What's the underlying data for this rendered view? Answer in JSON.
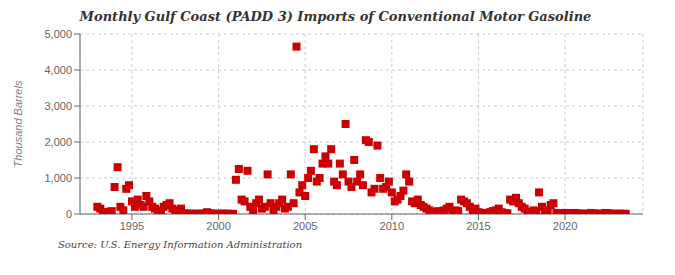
{
  "chart_data": {
    "type": "scatter",
    "title": "Monthly Gulf Coast (PADD 3) Imports of Conventional Motor Gasoline",
    "ylabel": "Thousand Barrels",
    "annotations": [
      "Source: U.S. Energy Information Administration"
    ],
    "color": "#CC0000",
    "marker": "square",
    "grid": true,
    "xlim": [
      1992.0,
      2024.5
    ],
    "xticks": [
      1995,
      2000,
      2005,
      2010,
      2015,
      2020
    ],
    "ylim": [
      0,
      5000
    ],
    "yticks": [
      0,
      {
        "value": 1000,
        "label": "1,000"
      },
      {
        "value": 2000,
        "label": "2,000"
      },
      {
        "value": 3000,
        "label": "3,000"
      },
      {
        "value": 4000,
        "label": "4,000"
      },
      {
        "value": 5000,
        "label": "5,000"
      }
    ],
    "x": [
      1993.0,
      1993.17,
      1993.33,
      1993.5,
      1993.67,
      1993.83,
      1994.0,
      1994.17,
      1994.33,
      1994.5,
      1994.67,
      1994.83,
      1995.0,
      1995.17,
      1995.33,
      1995.5,
      1995.67,
      1995.83,
      1996.0,
      1996.17,
      1996.33,
      1996.5,
      1996.67,
      1996.83,
      1997.0,
      1997.17,
      1997.33,
      1997.5,
      1997.67,
      1997.83,
      1998.0,
      1998.17,
      1998.33,
      1998.5,
      1998.67,
      1998.83,
      1999.0,
      1999.17,
      1999.33,
      1999.5,
      1999.67,
      1999.83,
      2000.0,
      2000.17,
      2000.33,
      2000.5,
      2000.67,
      2000.83,
      2001.0,
      2001.17,
      2001.33,
      2001.5,
      2001.67,
      2001.83,
      2002.0,
      2002.17,
      2002.33,
      2002.5,
      2002.67,
      2002.83,
      2003.0,
      2003.17,
      2003.33,
      2003.5,
      2003.67,
      2003.83,
      2004.0,
      2004.17,
      2004.33,
      2004.5,
      2004.67,
      2004.83,
      2005.0,
      2005.17,
      2005.33,
      2005.5,
      2005.67,
      2005.83,
      2006.0,
      2006.17,
      2006.33,
      2006.5,
      2006.67,
      2006.83,
      2007.0,
      2007.17,
      2007.33,
      2007.5,
      2007.67,
      2007.83,
      2008.0,
      2008.17,
      2008.33,
      2008.5,
      2008.67,
      2008.83,
      2009.0,
      2009.17,
      2009.33,
      2009.5,
      2009.67,
      2009.83,
      2010.0,
      2010.17,
      2010.33,
      2010.5,
      2010.67,
      2010.83,
      2011.0,
      2011.17,
      2011.33,
      2011.5,
      2011.67,
      2011.83,
      2012.0,
      2012.17,
      2012.33,
      2012.5,
      2012.67,
      2012.83,
      2013.0,
      2013.17,
      2013.33,
      2013.5,
      2013.67,
      2013.83,
      2014.0,
      2014.17,
      2014.33,
      2014.5,
      2014.67,
      2014.83,
      2015.0,
      2015.17,
      2015.33,
      2015.5,
      2015.67,
      2015.83,
      2016.0,
      2016.17,
      2016.33,
      2016.5,
      2016.67,
      2016.83,
      2017.0,
      2017.17,
      2017.33,
      2017.5,
      2017.67,
      2017.83,
      2018.0,
      2018.17,
      2018.33,
      2018.5,
      2018.67,
      2018.83,
      2019.0,
      2019.17,
      2019.33,
      2019.5,
      2019.67,
      2019.83,
      2020.0,
      2020.17,
      2020.33,
      2020.5,
      2020.67,
      2020.83,
      2021.0,
      2021.17,
      2021.33,
      2021.5,
      2021.67,
      2021.83,
      2022.0,
      2022.17,
      2022.33,
      2022.5,
      2022.67,
      2022.83,
      2023.0,
      2023.17,
      2023.33,
      2023.5
    ],
    "values": [
      200,
      150,
      50,
      30,
      60,
      80,
      750,
      1300,
      200,
      100,
      700,
      800,
      350,
      200,
      400,
      250,
      200,
      500,
      350,
      200,
      150,
      80,
      100,
      200,
      250,
      300,
      150,
      50,
      100,
      150,
      20,
      10,
      5,
      10,
      5,
      5,
      10,
      10,
      50,
      20,
      10,
      5,
      5,
      10,
      10,
      5,
      5,
      5,
      950,
      1250,
      400,
      350,
      1200,
      200,
      100,
      300,
      400,
      150,
      200,
      1100,
      300,
      100,
      200,
      300,
      400,
      150,
      200,
      1100,
      300,
      4650,
      600,
      800,
      500,
      1000,
      1200,
      1800,
      900,
      1000,
      1400,
      1600,
      1400,
      1800,
      900,
      800,
      1400,
      1100,
      2500,
      900,
      750,
      1500,
      900,
      1100,
      800,
      2050,
      2000,
      600,
      700,
      1900,
      1000,
      700,
      750,
      900,
      600,
      350,
      400,
      500,
      650,
      1100,
      900,
      350,
      300,
      400,
      250,
      200,
      150,
      100,
      50,
      30,
      80,
      50,
      100,
      150,
      200,
      50,
      100,
      80,
      400,
      350,
      300,
      200,
      100,
      150,
      50,
      30,
      20,
      10,
      50,
      80,
      100,
      150,
      50,
      30,
      20,
      400,
      350,
      450,
      300,
      200,
      150,
      50,
      30,
      100,
      80,
      600,
      200,
      100,
      50,
      250,
      300,
      30,
      20,
      10,
      30,
      20,
      10,
      30,
      20,
      10,
      5,
      10,
      5,
      30,
      20,
      5,
      10,
      5,
      30,
      20,
      10,
      5,
      5,
      10,
      5,
      5
    ]
  }
}
